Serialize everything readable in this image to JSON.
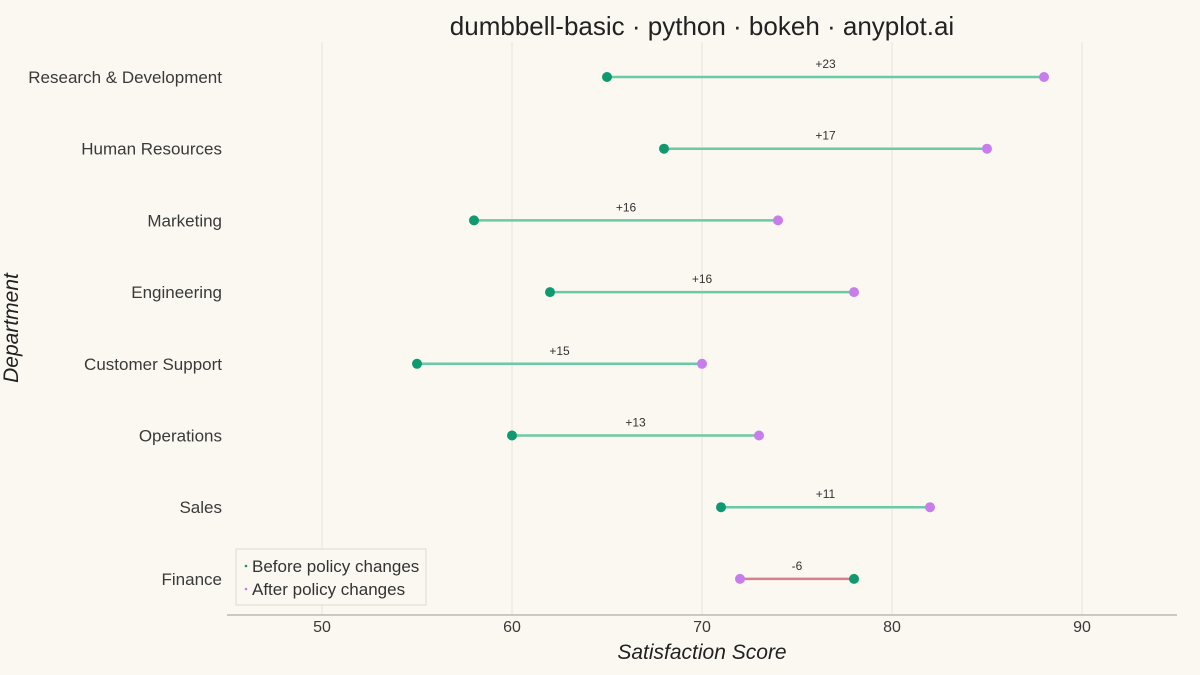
{
  "chart_data": {
    "type": "dumbbell",
    "title": "dumbbell-basic · python · bokeh · anyplot.ai",
    "xlabel": "Satisfaction Score",
    "ylabel": "Department",
    "xlim": [
      45,
      95
    ],
    "xticks": [
      50,
      60,
      70,
      80,
      90
    ],
    "grid": {
      "x": true,
      "y": false
    },
    "legend_position": "bottom-left",
    "colors": {
      "before": "#0E9A6E",
      "after": "#C77DEB",
      "increase_line": "#6CC9A6",
      "decrease_line": "#D4818D",
      "grid": "#E6E4DC",
      "axis": "#9A9A9A"
    },
    "series": [
      {
        "name": "Before policy changes",
        "key": "before"
      },
      {
        "name": "After policy changes",
        "key": "after"
      }
    ],
    "categories": [
      "Research & Development",
      "Human Resources",
      "Marketing",
      "Engineering",
      "Customer Support",
      "Operations",
      "Sales",
      "Finance"
    ],
    "before": [
      65,
      68,
      58,
      62,
      55,
      60,
      71,
      78
    ],
    "after": [
      88,
      85,
      74,
      78,
      70,
      73,
      82,
      72
    ],
    "change_labels": [
      "+23",
      "+17",
      "+16",
      "+16",
      "+15",
      "+13",
      "+11",
      "-6"
    ]
  }
}
